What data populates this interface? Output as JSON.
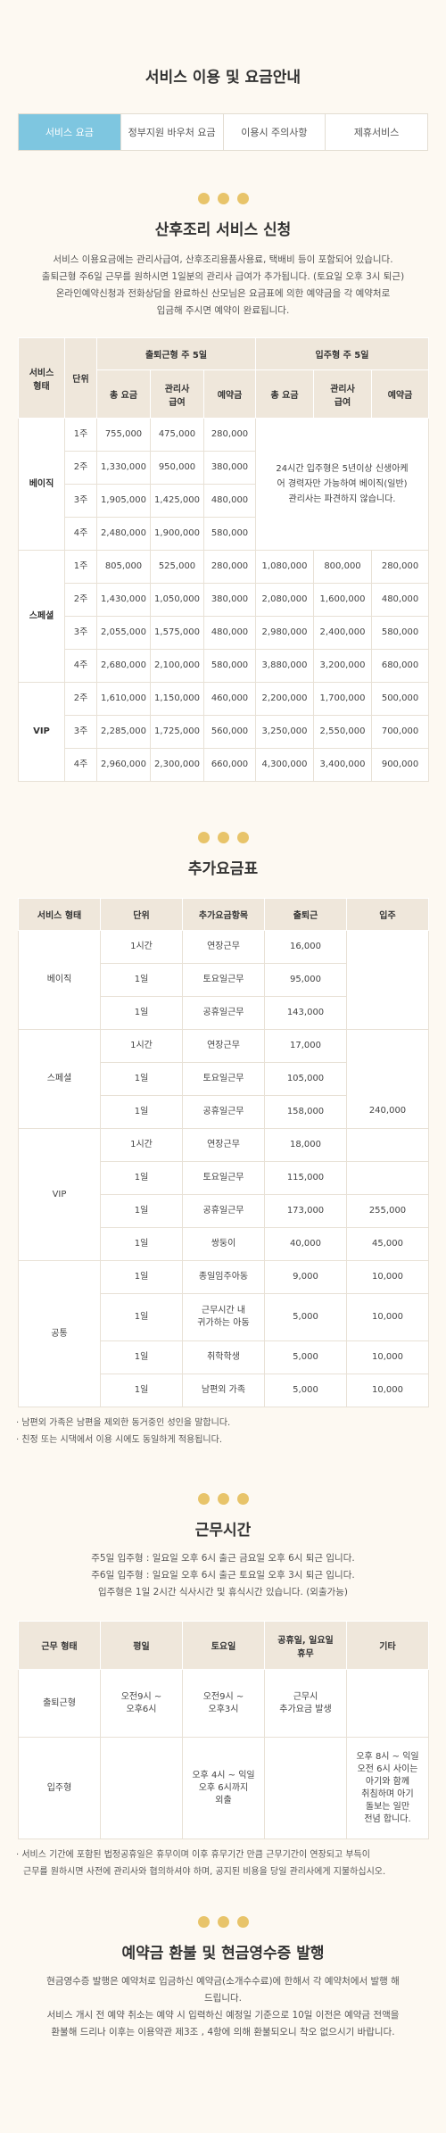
{
  "page_title": "서비스 이용 및 요금안내",
  "tabs": [
    "서비스 요금",
    "정부지원 바우처 요금",
    "이용시 주의사항",
    "제휴서비스"
  ],
  "section1": {
    "title": "산후조리 서비스 신청",
    "desc": [
      "서비스 이용요금에는 관리사급여, 산후조리용품사용료, 택배비 등이 포함되어 있습니다.",
      "출퇴근형 주6일 근무를 원하시면 1일분의 관리사 급여가 추가됩니다. (토요일 오후 3시 퇴근)",
      "온라인예약신청과 전화상담을 완료하신 산모님은 요금표에 의한 예약금을 각 예약처로",
      "입금해 주시면 예약이 완료됩니다."
    ],
    "head": {
      "service_type": "서비스\n형태",
      "unit": "단위",
      "commute": "출퇴근형 주 5일",
      "livein": "입주형 주 5일",
      "total": "총 요금",
      "salary": "관리사\n급여",
      "deposit": "예약금"
    },
    "basic_label": "베이직",
    "basic_rows": [
      {
        "unit": "1주",
        "c_total": "755,000",
        "c_salary": "475,000",
        "c_deposit": "280,000"
      },
      {
        "unit": "2주",
        "c_total": "1,330,000",
        "c_salary": "950,000",
        "c_deposit": "380,000"
      },
      {
        "unit": "3주",
        "c_total": "1,905,000",
        "c_salary": "1,425,000",
        "c_deposit": "480,000"
      },
      {
        "unit": "4주",
        "c_total": "2,480,000",
        "c_salary": "1,900,000",
        "c_deposit": "580,000"
      }
    ],
    "basic_note": "24시간 입주형은 5년이상 신생아케어 경력자만 가능하여 베이직(일반)관리사는 파견하지 않습니다.",
    "special_label": "스페셜",
    "special_rows": [
      {
        "unit": "1주",
        "c_total": "805,000",
        "c_salary": "525,000",
        "c_deposit": "280,000",
        "l_total": "1,080,000",
        "l_salary": "800,000",
        "l_deposit": "280,000"
      },
      {
        "unit": "2주",
        "c_total": "1,430,000",
        "c_salary": "1,050,000",
        "c_deposit": "380,000",
        "l_total": "2,080,000",
        "l_salary": "1,600,000",
        "l_deposit": "480,000"
      },
      {
        "unit": "3주",
        "c_total": "2,055,000",
        "c_salary": "1,575,000",
        "c_deposit": "480,000",
        "l_total": "2,980,000",
        "l_salary": "2,400,000",
        "l_deposit": "580,000"
      },
      {
        "unit": "4주",
        "c_total": "2,680,000",
        "c_salary": "2,100,000",
        "c_deposit": "580,000",
        "l_total": "3,880,000",
        "l_salary": "3,200,000",
        "l_deposit": "680,000"
      }
    ],
    "vip_label": "VIP",
    "vip_rows": [
      {
        "unit": "2주",
        "c_total": "1,610,000",
        "c_salary": "1,150,000",
        "c_deposit": "460,000",
        "l_total": "2,200,000",
        "l_salary": "1,700,000",
        "l_deposit": "500,000"
      },
      {
        "unit": "3주",
        "c_total": "2,285,000",
        "c_salary": "1,725,000",
        "c_deposit": "560,000",
        "l_total": "3,250,000",
        "l_salary": "2,550,000",
        "l_deposit": "700,000"
      },
      {
        "unit": "4주",
        "c_total": "2,960,000",
        "c_salary": "2,300,000",
        "c_deposit": "660,000",
        "l_total": "4,300,000",
        "l_salary": "3,400,000",
        "l_deposit": "900,000"
      }
    ]
  },
  "section2": {
    "title": "추가요금표",
    "head": {
      "type": "서비스 형태",
      "unit": "단위",
      "item": "추가요금항목",
      "commute": "출퇴근",
      "livein": "입주"
    },
    "groups": [
      {
        "label": "베이직",
        "rows": [
          {
            "unit": "1시간",
            "item": "연장근무",
            "commute": "16,000"
          },
          {
            "unit": "1일",
            "item": "토요일근무",
            "commute": "95,000"
          },
          {
            "unit": "1일",
            "item": "공휴일근무",
            "commute": "143,000"
          }
        ]
      },
      {
        "label": "스페셜",
        "livein": "240,000",
        "rows": [
          {
            "unit": "1시간",
            "item": "연장근무",
            "commute": "17,000"
          },
          {
            "unit": "1일",
            "item": "토요일근무",
            "commute": "105,000"
          },
          {
            "unit": "1일",
            "item": "공휴일근무",
            "commute": "158,000"
          }
        ]
      },
      {
        "label": "VIP",
        "rows": [
          {
            "unit": "1시간",
            "item": "연장근무",
            "commute": "18,000",
            "livein": ""
          },
          {
            "unit": "1일",
            "item": "토요일근무",
            "commute": "115,000",
            "livein": ""
          },
          {
            "unit": "1일",
            "item": "공휴일근무",
            "commute": "173,000",
            "livein": "255,000"
          },
          {
            "unit": "1일",
            "item": "쌍둥이",
            "commute": "40,000",
            "livein": "45,000"
          }
        ]
      },
      {
        "label": "공통",
        "rows": [
          {
            "unit": "1일",
            "item": "종일임주아동",
            "commute": "9,000",
            "livein": "10,000"
          },
          {
            "unit": "1일",
            "item": "근무시간 내\n귀가하는 아동",
            "commute": "5,000",
            "livein": "10,000"
          },
          {
            "unit": "1일",
            "item": "취학학생",
            "commute": "5,000",
            "livein": "10,000"
          },
          {
            "unit": "1일",
            "item": "남편외 가족",
            "commute": "5,000",
            "livein": "10,000"
          }
        ]
      }
    ],
    "notes": [
      "· 남편외 가족은 남편을 제외한 동거중인 성인을 말합니다.",
      "· 친정 또는 시댁에서 이용 시에도 동일하게 적용됩니다."
    ]
  },
  "section3": {
    "title": "근무시간",
    "desc": [
      "주5일 입주형 : 일요일 오후 6시 출근 금요일 오후 6시 퇴근 입니다.",
      "주6일 입주형 : 일요일 오후 6시 출근 토요일 오후 3시 퇴근 입니다.",
      "입주형은 1일 2시간 식사시간 및 휴식시간 있습니다. (외출가능)"
    ],
    "head": {
      "type": "근무 형태",
      "weekday": "평일",
      "saturday": "토요일",
      "holiday": "공휴일, 일요일\n휴무",
      "etc": "기타"
    },
    "rows": [
      {
        "type": "출퇴근형",
        "weekday": "오전9시 ~\n오후6시",
        "saturday": "오전9시 ~\n오후3시",
        "holiday": "근무시\n추가요금 발생",
        "etc": ""
      },
      {
        "type": "입주형",
        "weekday": "",
        "saturday": "오후 4시 ~ 익일\n오후 6시까지\n외출",
        "holiday": "",
        "etc": "오후 8시 ~ 익일\n오전 6시 사이는\n아기와 함께\n취침하며 아기\n돌보는 일만\n전념 합니다."
      }
    ],
    "note": [
      "· 서비스 기간에 포함된 법정공휴일은 휴무이며 이후 휴무기간 만큼 근무기간이 연장되고 부득이",
      "근무를 원하시면 사전에 관리사와 협의하셔야 하며, 공지된 비용을 당일 관리사에게 지불하십시오."
    ]
  },
  "section4": {
    "title": "예약금 환불 및 현금영수증 발행",
    "desc": [
      "현금영수증 발행은 예약처로 입금하신 예약금(소개수수료)에 한해서 각 예약처에서 발행 해",
      "드립니다.",
      "서비스 개시 전 예약 취소는 예약 시 입력하신 예정일 기준으로 10일 이전은 예약금 전액을",
      "환불해 드리나 이후는 이용약관 제3조 , 4항에 의해 환불되오니 착오 없으시기 바랍니다."
    ]
  },
  "colors": {
    "accent_tab": "#7ec6e0",
    "dots": "#e8c46a",
    "header_bg": "#efe7db",
    "page_bg": "#fdf9f2"
  }
}
